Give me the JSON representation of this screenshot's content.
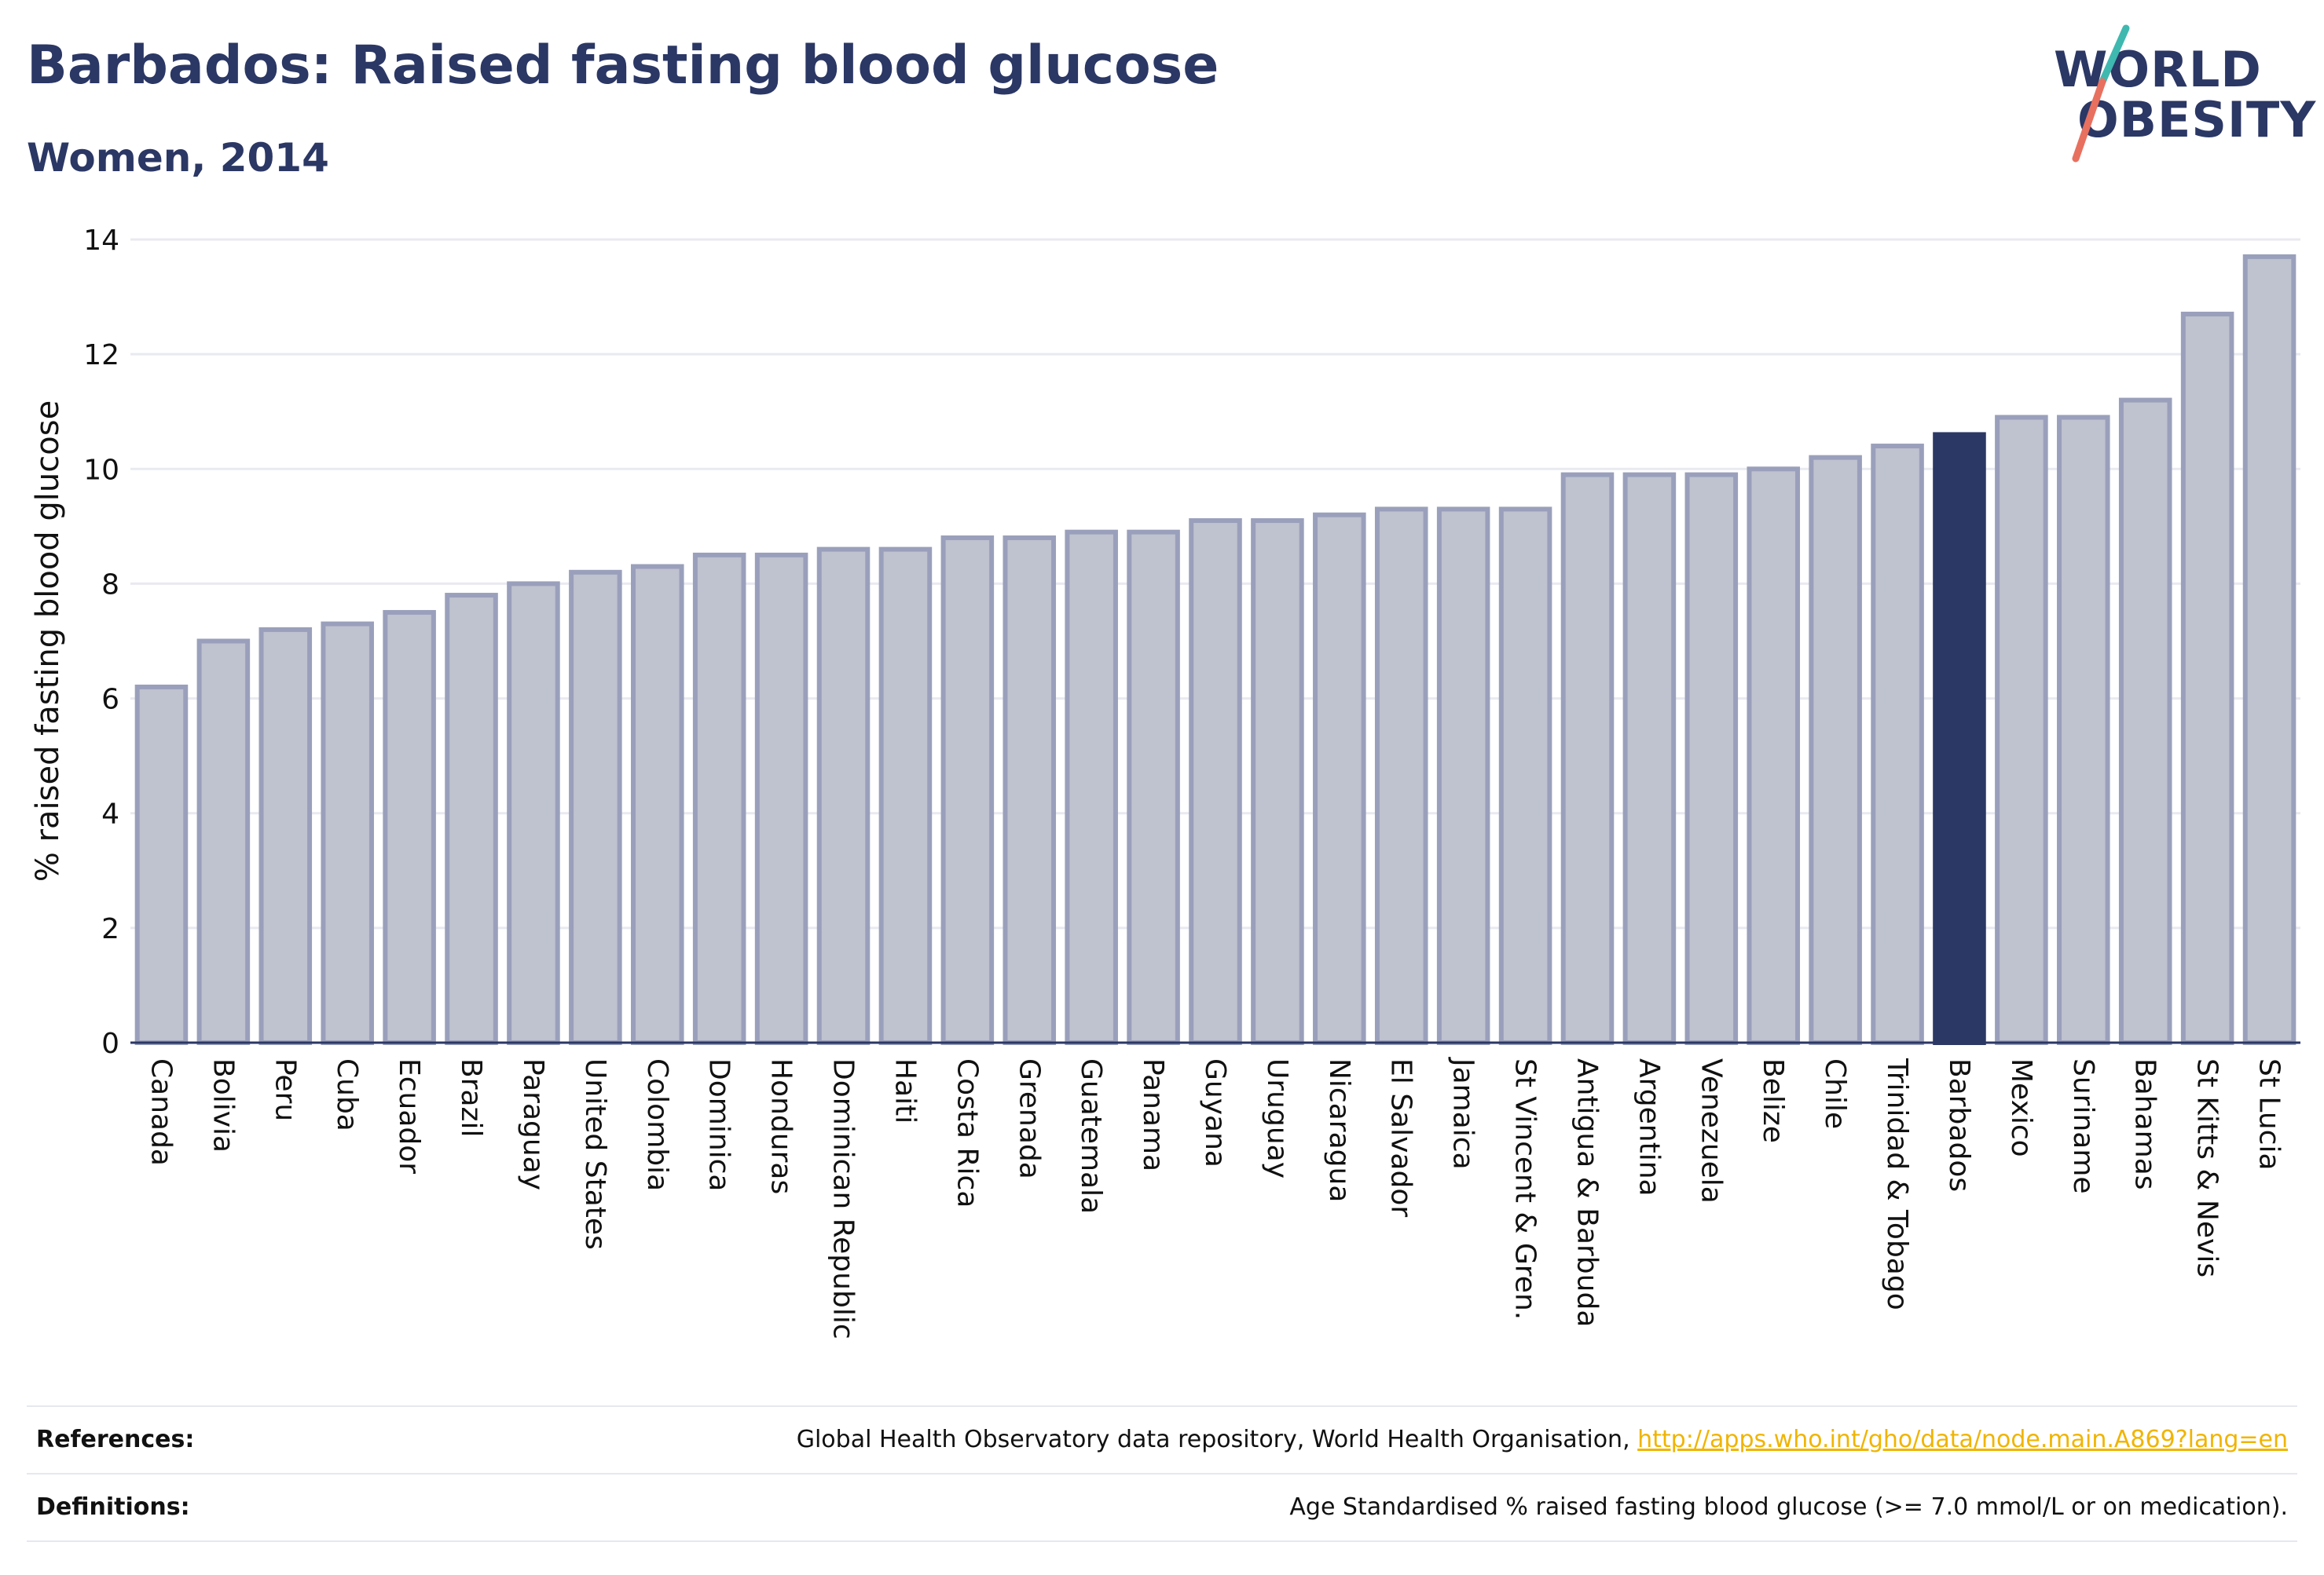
{
  "header": {
    "title": "Barbados: Raised fasting blood glucose",
    "subtitle": "Women, 2014"
  },
  "logo": {
    "line1": "WORLD",
    "line2": "OBESITY",
    "colors": {
      "text": "#2b3764",
      "slash_top": "#3fb8b0",
      "slash_bottom": "#e8705f"
    }
  },
  "chart_data": {
    "type": "bar",
    "title": "",
    "xlabel": "",
    "ylabel": "% raised fasting blood glucose",
    "ylim": [
      0,
      14
    ],
    "yticks": [
      0,
      2,
      4,
      6,
      8,
      10,
      12,
      14
    ],
    "grid": true,
    "highlight": "Barbados",
    "colors": {
      "bar": "#bfc2cf",
      "bar_edge": "#9aa0bb",
      "highlight": "#2b3764",
      "grid": "#e9eaf0",
      "axis": "#2b3764"
    },
    "categories": [
      "Canada",
      "Bolivia",
      "Peru",
      "Cuba",
      "Ecuador",
      "Brazil",
      "Paraguay",
      "United States",
      "Colombia",
      "Dominica",
      "Honduras",
      "Dominican Republic",
      "Haiti",
      "Costa Rica",
      "Grenada",
      "Guatemala",
      "Panama",
      "Guyana",
      "Uruguay",
      "Nicaragua",
      "El Salvador",
      "Jamaica",
      "St Vincent & Gren.",
      "Antigua & Barbuda",
      "Argentina",
      "Venezuela",
      "Belize",
      "Chile",
      "Trinidad & Tobago",
      "Barbados",
      "Mexico",
      "Suriname",
      "Bahamas",
      "St Kitts & Nevis",
      "St Lucia"
    ],
    "values": [
      6.2,
      7.0,
      7.2,
      7.3,
      7.5,
      7.8,
      8.0,
      8.2,
      8.3,
      8.5,
      8.5,
      8.6,
      8.6,
      8.8,
      8.8,
      8.9,
      8.9,
      9.1,
      9.1,
      9.2,
      9.3,
      9.3,
      9.3,
      9.9,
      9.9,
      9.9,
      10.0,
      10.2,
      10.4,
      10.6,
      10.9,
      10.9,
      11.2,
      12.7,
      13.7
    ]
  },
  "references": {
    "label": "References:",
    "text": "Global Health Observatory data repository, World Health Organisation, ",
    "link": "http://apps.who.int/gho/data/node.main.A869?lang=en"
  },
  "definitions": {
    "label": "Definitions:",
    "text": "Age Standardised % raised fasting blood glucose (>= 7.0 mmol/L or on medication)."
  }
}
